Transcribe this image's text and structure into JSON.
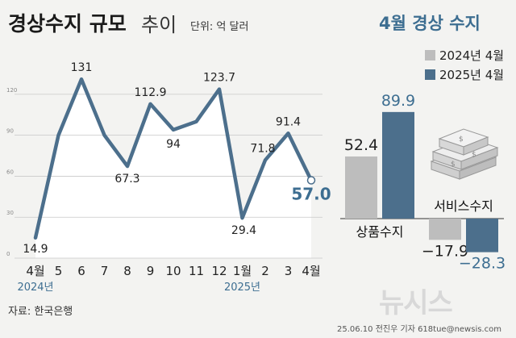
{
  "header": {
    "title": "경상수지 규모",
    "title_sub": "추이",
    "unit": "단위: 억 달러",
    "right_title": "4월 경상 수지"
  },
  "legend": [
    {
      "label": "2024년 4월",
      "color": "#bdbdbd"
    },
    {
      "label": "2025년 4월",
      "color": "#4c6f8c"
    }
  ],
  "footer": {
    "source": "자료: 한국은행",
    "credit": "25.06.10 전진우 기자 618tue@newsis.com",
    "watermark": "뉴시스"
  },
  "colors": {
    "line": "#4c6f8c",
    "area": "#ffffff",
    "accent_text": "#3d6e91",
    "bar_2024": "#bdbdbd",
    "bar_2025": "#4c6f8c",
    "background": "#f3f3f1"
  },
  "chart_data": [
    {
      "type": "area",
      "title": "경상수지 규모 추이",
      "unit": "억 달러",
      "x": [
        "4월",
        "5",
        "6",
        "7",
        "8",
        "9",
        "10",
        "11",
        "12",
        "1월",
        "2",
        "3",
        "4월"
      ],
      "year_labels": [
        {
          "label": "2024년",
          "at": "4월"
        },
        {
          "label": "2025년",
          "at": "1월"
        }
      ],
      "values": [
        14.9,
        90,
        131,
        90,
        67.3,
        112.9,
        94,
        100,
        123.7,
        29.4,
        71.8,
        91.4,
        57.0
      ],
      "point_labels": [
        "14.9",
        "",
        "131",
        "",
        "67.3",
        "112.9",
        "94",
        "",
        "123.7",
        "29.4",
        "71.8",
        "91.4",
        "57.0"
      ],
      "highlight_last": true,
      "yticks": [
        0,
        30,
        60,
        90,
        120
      ],
      "ylim": [
        0,
        140
      ],
      "grid": true
    },
    {
      "type": "bar",
      "title": "4월 경상 수지",
      "categories": [
        "상품수지",
        "서비스수지"
      ],
      "series": [
        {
          "name": "2024년 4월",
          "values": [
            52.4,
            -17.9
          ]
        },
        {
          "name": "2025년 4월",
          "values": [
            89.9,
            -28.3
          ]
        }
      ],
      "value_labels": [
        [
          "52.4",
          "−17.9"
        ],
        [
          "89.9",
          "−28.3"
        ]
      ]
    }
  ]
}
